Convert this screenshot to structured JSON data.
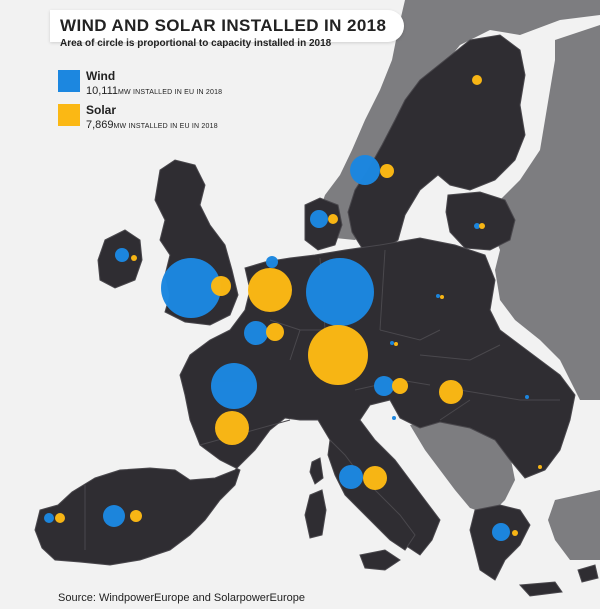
{
  "title": "WIND AND SOLAR INSTALLED IN 2018",
  "subtitle": "Area of circle is proportional to capacity installed in 2018",
  "legend": {
    "wind": {
      "name": "Wind",
      "value": "10,111",
      "unit": "MW INSTALLED IN EU IN 2018",
      "color": "#1c87e0"
    },
    "solar": {
      "name": "Solar",
      "value": "7,869",
      "unit": "MW INSTALLED IN EU IN 2018",
      "color": "#fbb814"
    }
  },
  "source": "Source: WindpowerEurope and SolarpowerEurope",
  "colors": {
    "eu_land": "#2f2d32",
    "non_eu_land": "#7d7d80",
    "sea": "#f2f2f2"
  },
  "chart_data": {
    "type": "proportional-symbol-map",
    "unit": "MW",
    "series": [
      "Wind",
      "Solar"
    ]
  }
}
